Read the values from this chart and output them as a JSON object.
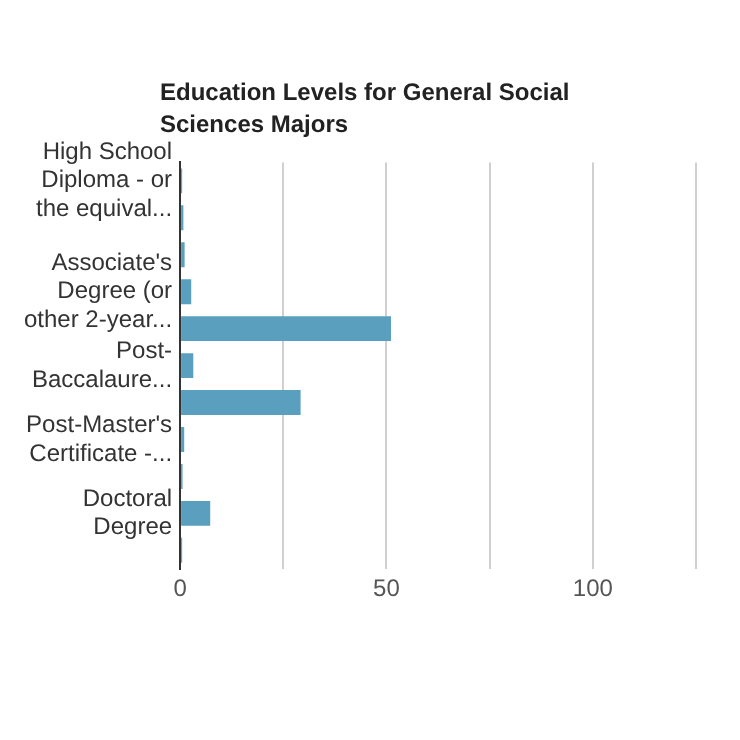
{
  "chart_data": {
    "type": "bar",
    "orientation": "horizontal",
    "title": "Education Levels for General Social Sciences Majors",
    "categories": [
      "High School Diploma - or the equival...",
      null,
      null,
      "Associate's Degree (or other 2-year...",
      null,
      "Post-Baccalaure...",
      null,
      "Post-Master's Certificate -...",
      null,
      "Doctoral Degree",
      null
    ],
    "values": [
      0.5,
      0.8,
      1.1,
      2.7,
      51.1,
      3.2,
      29.2,
      1,
      0.6,
      7.3,
      0.5
    ],
    "color": "#5a9fbd",
    "xlim": [
      0,
      125
    ],
    "xticks": [
      0,
      {
        "value": 25,
        "label": null
      },
      50,
      {
        "value": 75,
        "label": null
      },
      100,
      {
        "value": 125,
        "label": null
      }
    ],
    "grid": "x",
    "legend": false
  }
}
